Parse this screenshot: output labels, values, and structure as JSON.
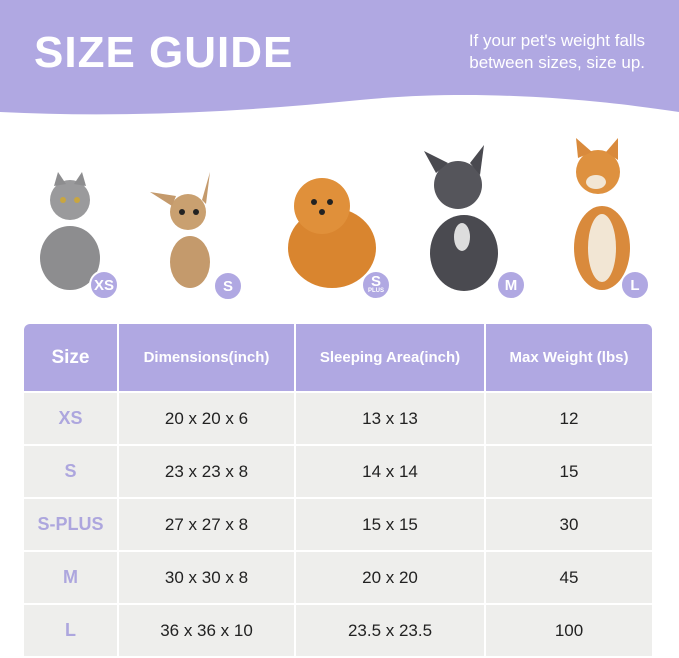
{
  "header": {
    "title": "SIZE GUIDE",
    "note_line1": "If your pet's weight falls",
    "note_line2": "between sizes, size up.",
    "color": "#B0A8E2"
  },
  "pets": [
    {
      "animal": "cat",
      "badge": "XS",
      "fur": "#8d8d8f"
    },
    {
      "animal": "chihuahua",
      "badge": "S",
      "fur": "#c49a6c"
    },
    {
      "animal": "pomeranian",
      "badge": "S",
      "badge_sub": "PLUS",
      "fur": "#d9852f"
    },
    {
      "animal": "french-bulldog",
      "badge": "M",
      "fur": "#4a4a50"
    },
    {
      "animal": "shiba-inu",
      "badge": "L",
      "fur": "#d98a3c"
    }
  ],
  "table": {
    "headers": [
      "Size",
      "Dimensions(inch)",
      "Sleeping Area(inch)",
      "Max Weight (lbs)"
    ],
    "rows": [
      [
        "XS",
        "20 x 20 x 6",
        "13 x 13",
        "12"
      ],
      [
        "S",
        "23 x 23 x 8",
        "14 x 14",
        "15"
      ],
      [
        "S-PLUS",
        "27 x 27 x 8",
        "15 x 15",
        "30"
      ],
      [
        "M",
        "30 x 30 x 8",
        "20 x 20",
        "45"
      ],
      [
        "L",
        "36 x 36 x 10",
        "23.5 x 23.5",
        "100"
      ]
    ]
  }
}
